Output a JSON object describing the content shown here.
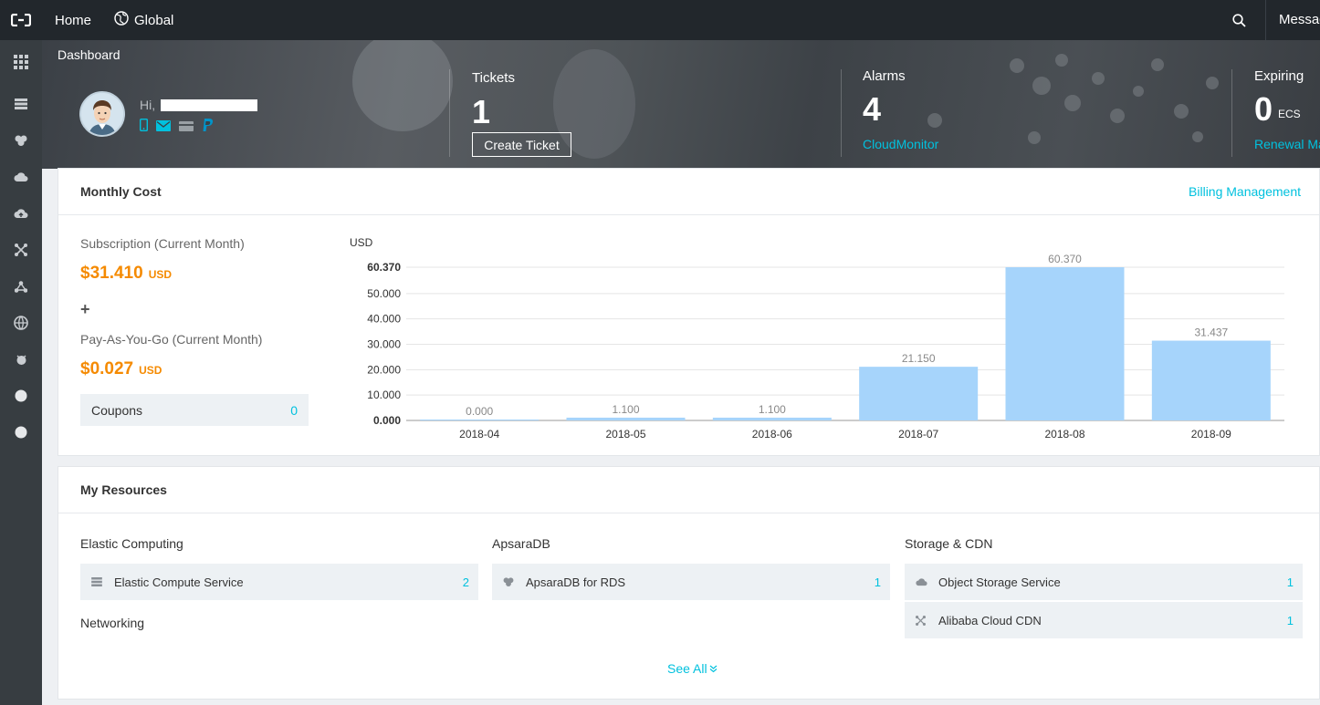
{
  "topbar": {
    "home_label": "Home",
    "region_label": "Global",
    "messages_label": "Messages"
  },
  "sidebar": {
    "items": [
      "apps-grid-icon",
      "server-icon",
      "database-icon",
      "cloud-storage-icon",
      "cloud-upload-icon",
      "network-icon",
      "cluster-icon",
      "globe-icon",
      "bug-icon",
      "circle-icon",
      "circle-icon"
    ]
  },
  "hero": {
    "title": "Dashboard",
    "greeting": "Hi,",
    "tickets": {
      "label": "Tickets",
      "value": "1",
      "button": "Create Ticket"
    },
    "alarms": {
      "label": "Alarms",
      "value": "4",
      "link": "CloudMonitor"
    },
    "expiring": {
      "label": "Expiring",
      "value": "0",
      "unit": "ECS",
      "link": "Renewal Management"
    }
  },
  "monthly_cost": {
    "title": "Monthly Cost",
    "billing_link": "Billing Management",
    "subscription_label": "Subscription (Current Month)",
    "subscription_amount": "$31.410",
    "subscription_unit": "USD",
    "plus": "+",
    "payg_label": "Pay-As-You-Go (Current Month)",
    "payg_amount": "$0.027",
    "payg_unit": "USD",
    "coupons_label": "Coupons",
    "coupons_count": "0"
  },
  "chart_data": {
    "type": "bar",
    "ylabel": "USD",
    "categories": [
      "2018-04",
      "2018-05",
      "2018-06",
      "2018-07",
      "2018-08",
      "2018-09"
    ],
    "values": [
      0.0,
      1.1,
      1.1,
      21.15,
      60.37,
      31.437
    ],
    "value_labels": [
      "0.000",
      "1.100",
      "1.100",
      "21.150",
      "60.370",
      "31.437"
    ],
    "yticks": [
      "0.000",
      "10.000",
      "20.000",
      "30.000",
      "40.000",
      "50.000",
      "60.370"
    ],
    "ytick_values": [
      0,
      10,
      20,
      30,
      40,
      50,
      60.37
    ],
    "ylim": [
      0,
      60.37
    ],
    "grid": true,
    "bar_color": "#a6d4fb"
  },
  "resources": {
    "title": "My Resources",
    "columns": [
      {
        "groups": [
          {
            "category": "Elastic Computing",
            "items": [
              {
                "icon": "server-icon",
                "name": "Elastic Compute Service",
                "count": "2"
              }
            ]
          },
          {
            "category": "Networking",
            "items": []
          }
        ]
      },
      {
        "groups": [
          {
            "category": "ApsaraDB",
            "items": [
              {
                "icon": "database-icon",
                "name": "ApsaraDB for RDS",
                "count": "1"
              }
            ]
          }
        ]
      },
      {
        "groups": [
          {
            "category": "Storage & CDN",
            "items": [
              {
                "icon": "cloud-storage-icon",
                "name": "Object Storage Service",
                "count": "1"
              },
              {
                "icon": "network-icon",
                "name": "Alibaba Cloud CDN",
                "count": "1"
              }
            ]
          }
        ]
      }
    ],
    "see_all": "See All"
  },
  "colors": {
    "accent": "#00c1de",
    "cost": "#f58a00",
    "topbar": "#22272c",
    "sidebar": "#373d41"
  }
}
